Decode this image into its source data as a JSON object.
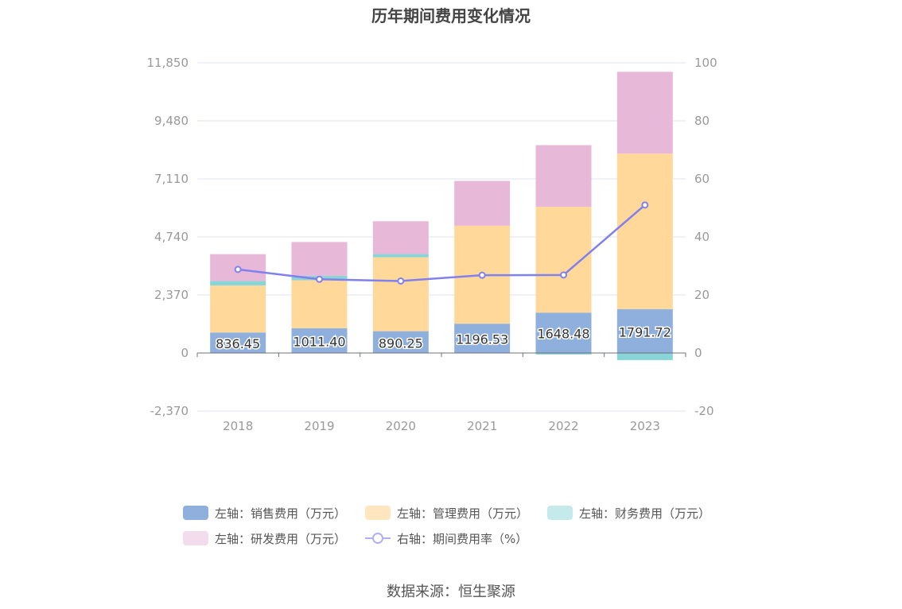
{
  "title": "历年期间费用变化情况",
  "source": "数据来源：恒生聚源",
  "colors": {
    "sales": "#8fb0dd",
    "admin": "#ffd89a",
    "finance": "#88d5d8",
    "rnd": "#e8b8d8",
    "rate": "#8080ee",
    "grid": "#e0e3f0",
    "axis_text": "#999999"
  },
  "chart_data": {
    "type": "bar",
    "stacked": true,
    "categories": [
      "2018",
      "2019",
      "2020",
      "2021",
      "2022",
      "2023"
    ],
    "left_axis": {
      "ticks": [
        "11,850",
        "9,480",
        "7,110",
        "4,740",
        "2,370",
        "0",
        "-2,370"
      ],
      "ylim": [
        -2370,
        11850
      ]
    },
    "right_axis": {
      "ticks": [
        "100",
        "80",
        "60",
        "40",
        "20",
        "0",
        "-20"
      ],
      "ylim": [
        -20,
        100
      ]
    },
    "series": [
      {
        "name": "左轴：销售费用（万元）",
        "key": "sales",
        "values": [
          836.45,
          1011.4,
          890.25,
          1196.53,
          1648.48,
          1791.72
        ],
        "labels": [
          "836.45",
          "1011.40",
          "890.25",
          "1196.53",
          "1648.48",
          "1791.72"
        ]
      },
      {
        "name": "左轴：管理费用（万元）",
        "key": "admin",
        "values": [
          1920,
          1960,
          3020,
          4000,
          4320,
          6350
        ]
      },
      {
        "name": "左轴：财务费用（万元）",
        "key": "finance",
        "values": [
          180,
          180,
          130,
          0,
          -60,
          -290
        ]
      },
      {
        "name": "左轴：研发费用（万元）",
        "key": "rnd",
        "values": [
          1100,
          1380,
          1340,
          1830,
          2520,
          3340
        ]
      }
    ],
    "line_series": {
      "name": "右轴：期间费用率（%）",
      "key": "rate",
      "values": [
        28.8,
        25.4,
        24.8,
        26.8,
        26.9,
        51.0
      ]
    },
    "grid": true,
    "legend_position": "bottom"
  }
}
